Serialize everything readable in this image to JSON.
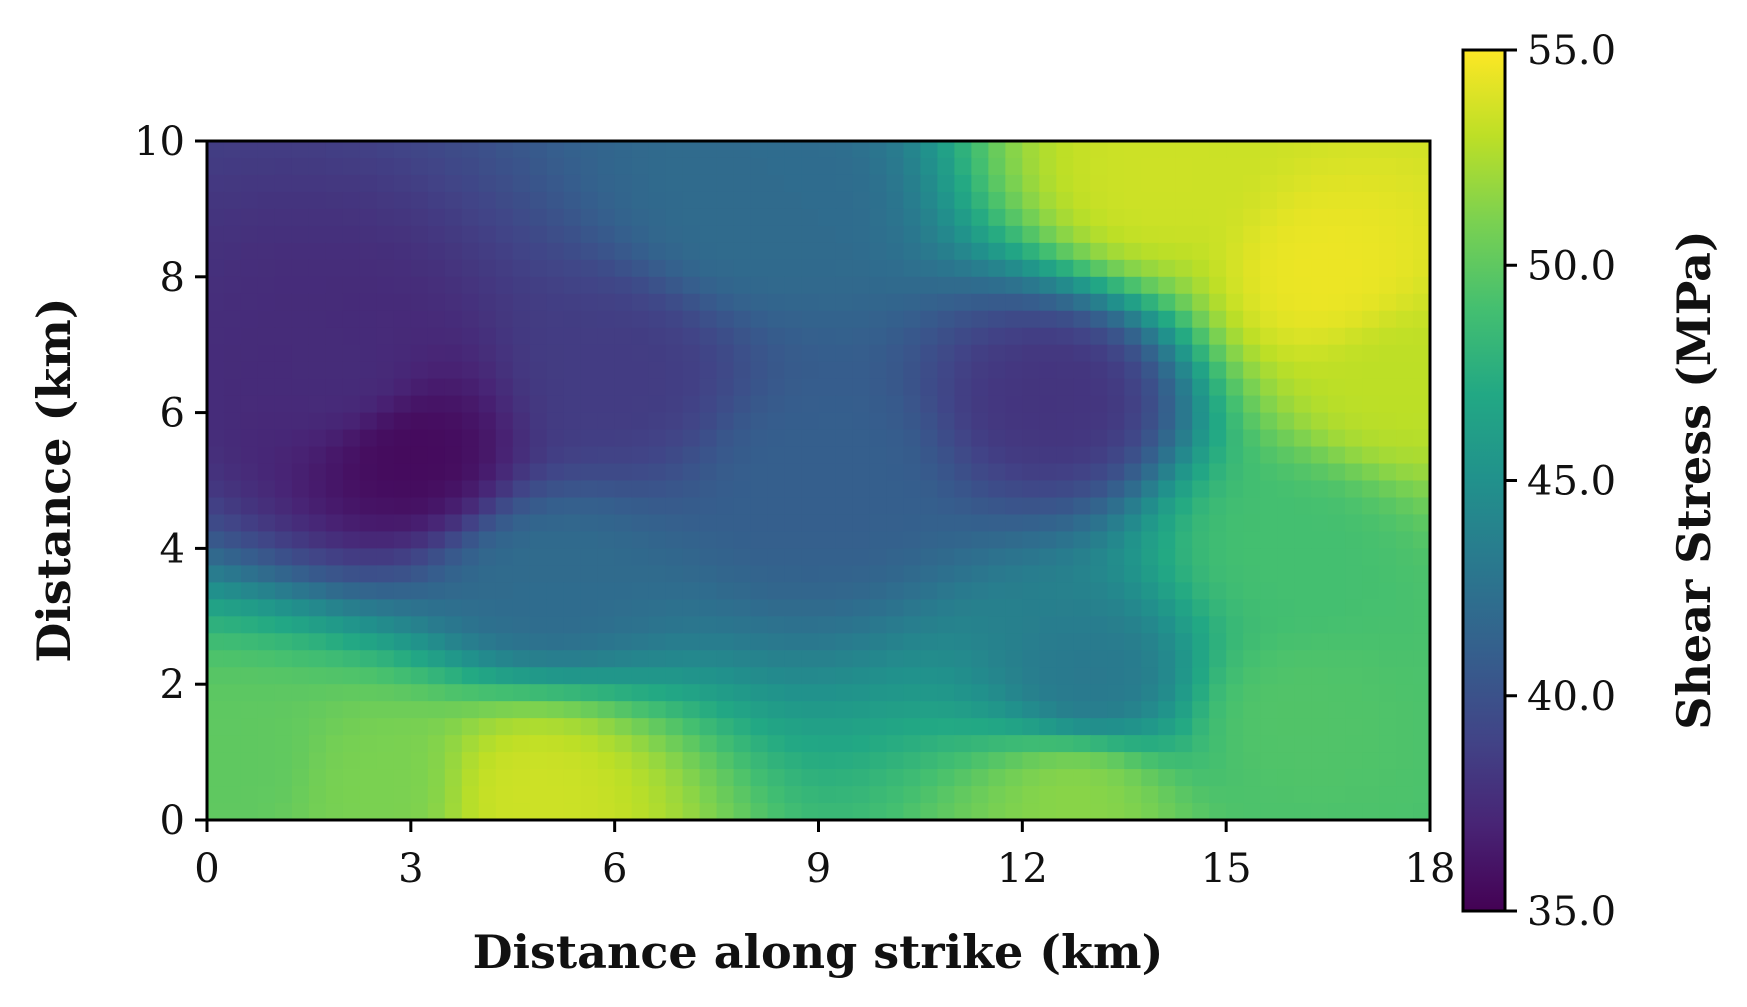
{
  "chart_data": {
    "type": "heatmap",
    "title": "",
    "xlabel": "Distance along strike (km)",
    "ylabel": "Distance (km)",
    "xlim": [
      0,
      18
    ],
    "ylim": [
      0,
      10
    ],
    "x_ticks": [
      "0",
      "3",
      "6",
      "9",
      "12",
      "15",
      "18"
    ],
    "y_ticks": [
      "0",
      "2",
      "4",
      "6",
      "8",
      "10"
    ],
    "colorbar": {
      "label": "Shear Stress (MPa)",
      "range": [
        35.0,
        55.0
      ],
      "ticks": [
        "35.0",
        "40.0",
        "45.0",
        "50.0",
        "55.0"
      ],
      "colormap": "viridis"
    },
    "grid": false,
    "features": [
      {
        "x": 3.0,
        "y": 5.4,
        "value": 35.5
      },
      {
        "x": 2.0,
        "y": 6.5,
        "value": 37.5
      },
      {
        "x": 6.0,
        "y": 6.5,
        "value": 38.5
      },
      {
        "x": 12.5,
        "y": 6.2,
        "value": 38.0
      },
      {
        "x": 9.0,
        "y": 5.0,
        "value": 41.0
      },
      {
        "x": 5.0,
        "y": 3.5,
        "value": 42.0
      },
      {
        "x": 8.0,
        "y": 9.0,
        "value": 42.0
      },
      {
        "x": 13.0,
        "y": 2.0,
        "value": 43.0
      },
      {
        "x": 4.8,
        "y": 0.4,
        "value": 53.5
      },
      {
        "x": 2.5,
        "y": 0.5,
        "value": 51.0
      },
      {
        "x": 12.8,
        "y": 0.4,
        "value": 51.5
      },
      {
        "x": 16.5,
        "y": 8.0,
        "value": 54.5
      },
      {
        "x": 14.0,
        "y": 9.4,
        "value": 53.5
      },
      {
        "x": 17.5,
        "y": 6.5,
        "value": 53.0
      },
      {
        "x": 16.0,
        "y": 4.0,
        "value": 49.0
      },
      {
        "x": 16.0,
        "y": 1.5,
        "value": 49.5
      },
      {
        "x": 0.5,
        "y": 0.8,
        "value": 50.0
      }
    ]
  }
}
